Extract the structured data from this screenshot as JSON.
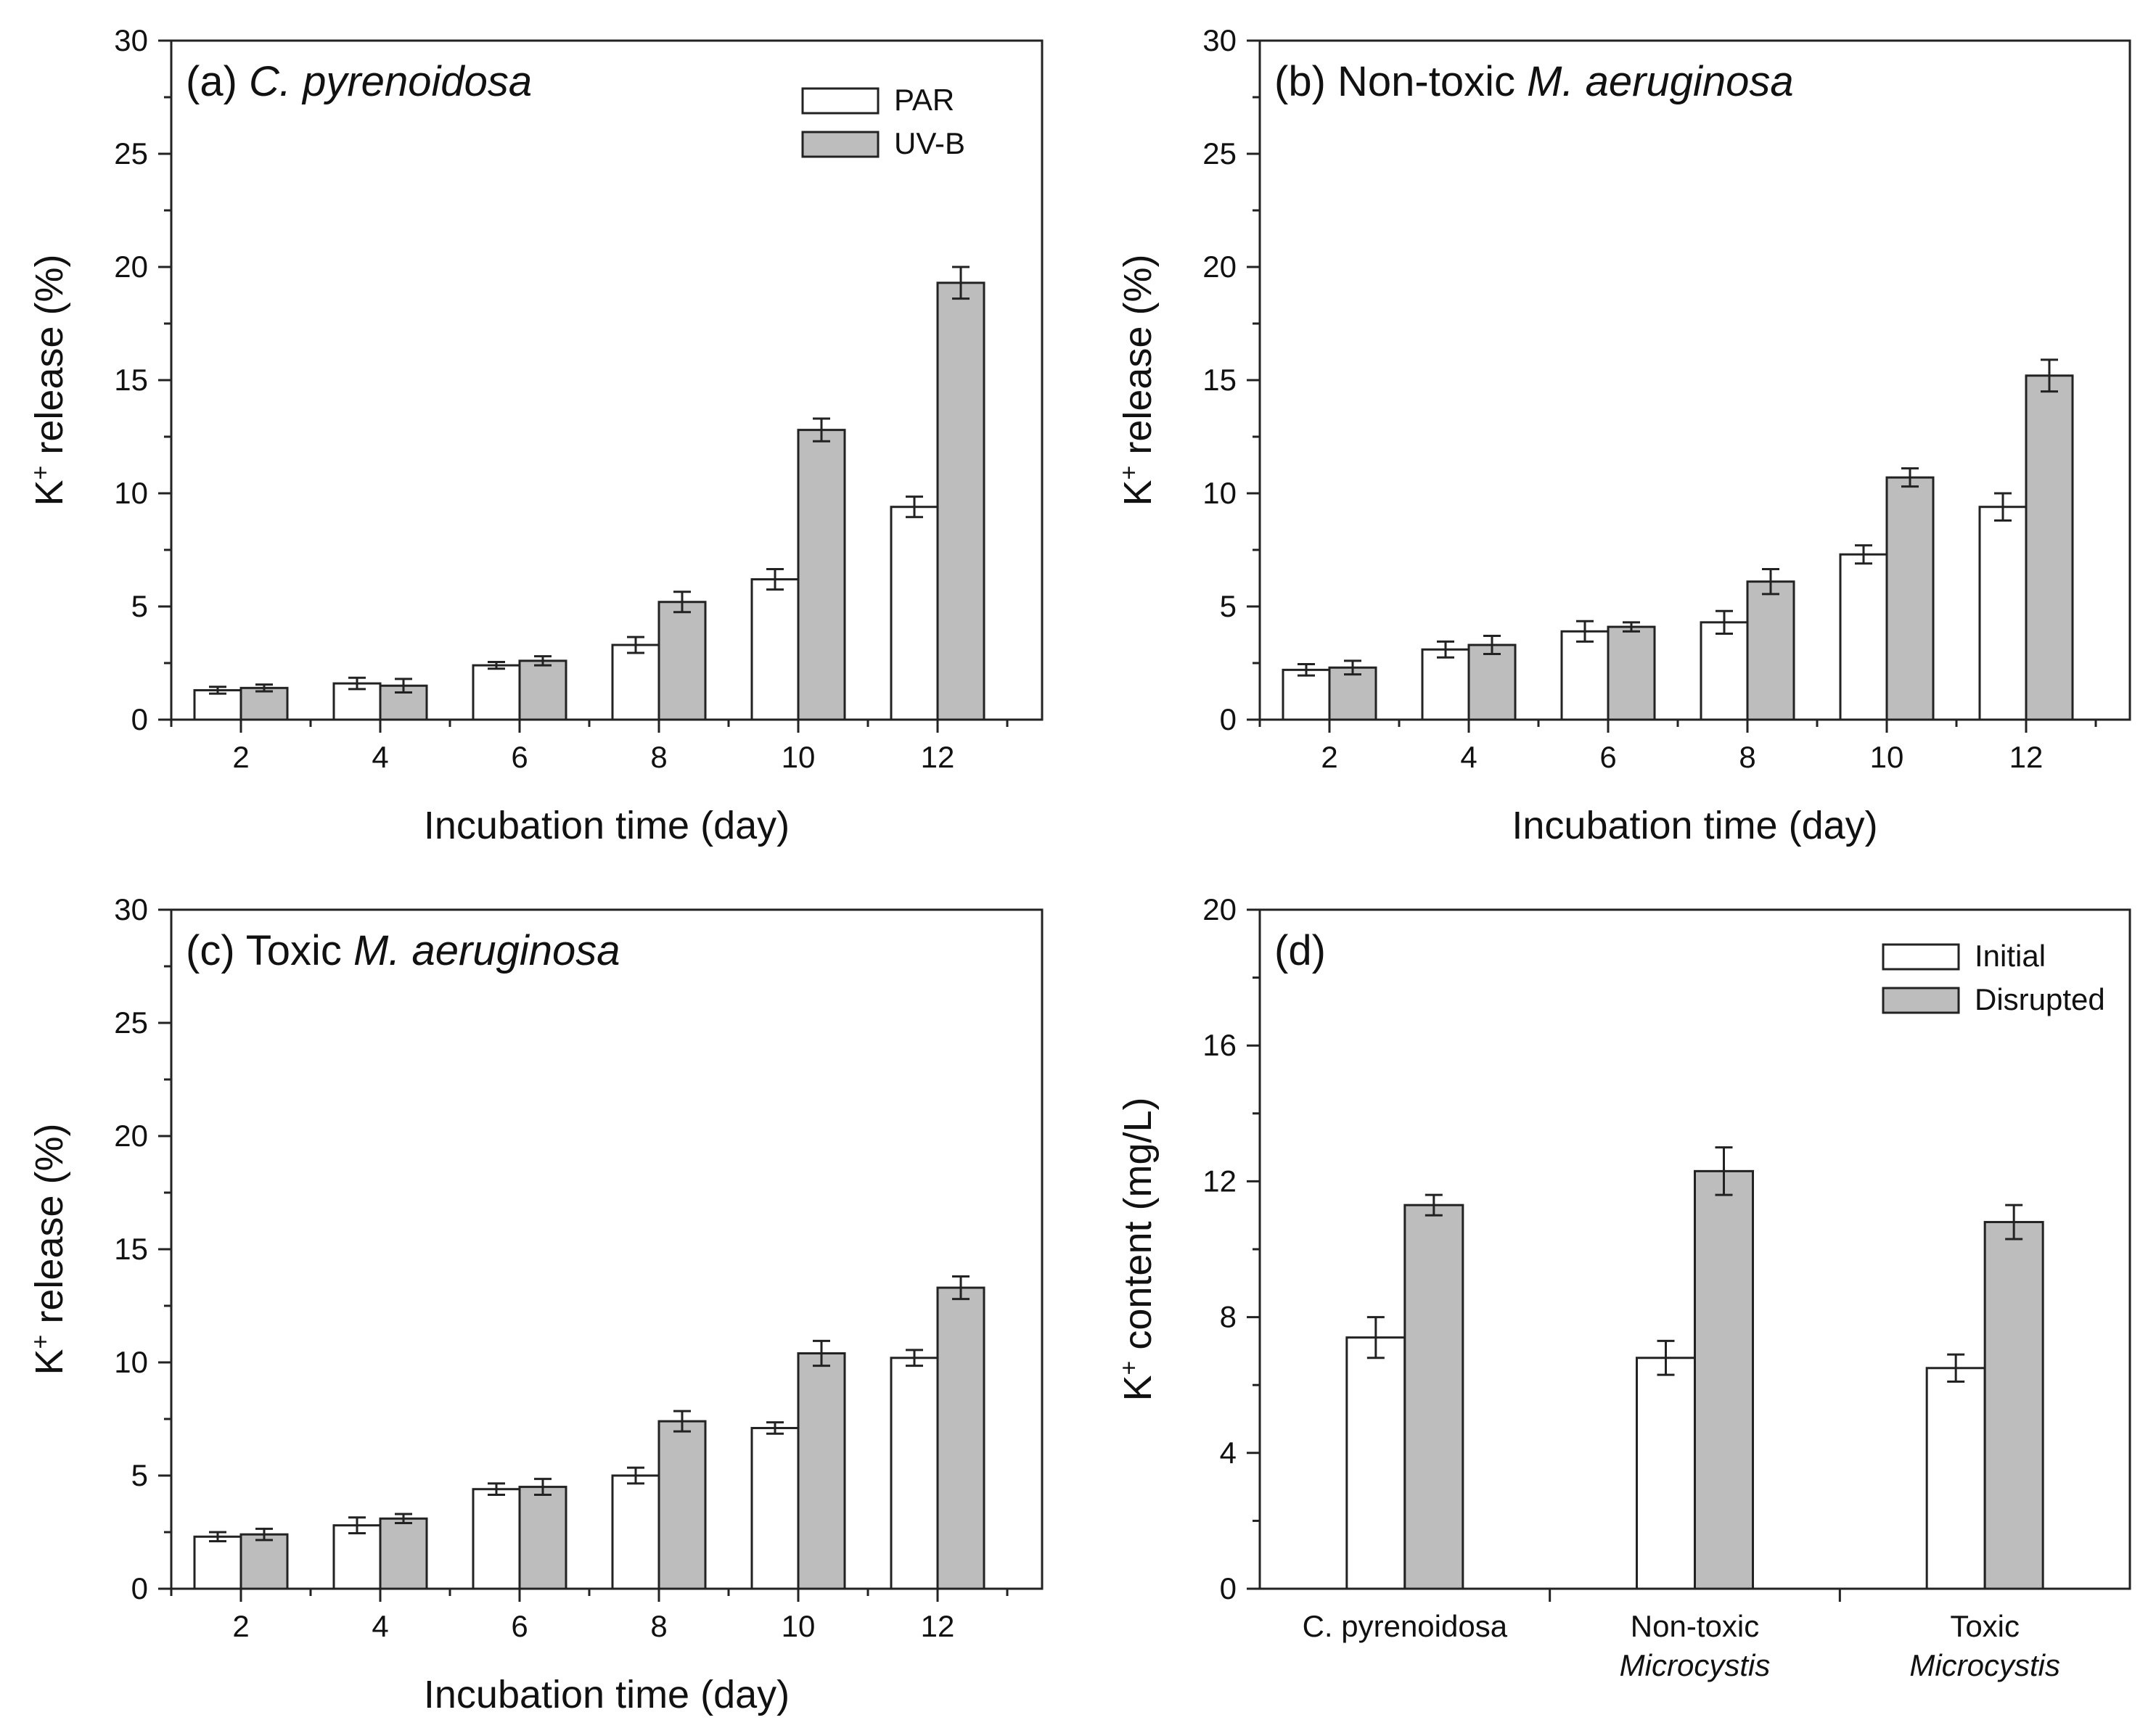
{
  "chart_data": [
    {
      "panel": "a",
      "type": "bar",
      "title_prefix": "(a) ",
      "title_italic": "C. pyrenoidosa",
      "title_suffix": "",
      "xlabel": "Incubation time (day)",
      "ylabel_main": "K",
      "ylabel_sup": "+",
      "ylabel_rest": "  release (%)",
      "ylim": [
        0,
        30
      ],
      "yticks": [
        "0",
        "5",
        "10",
        "15",
        "20",
        "25",
        "30"
      ],
      "categories": [
        "2",
        "4",
        "6",
        "8",
        "10",
        "12"
      ],
      "legend_position": "top-right",
      "series": [
        {
          "name": "PAR",
          "style": "white",
          "values": [
            1.3,
            1.6,
            2.4,
            3.3,
            6.2,
            9.4
          ],
          "errors": [
            0.15,
            0.25,
            0.15,
            0.35,
            0.45,
            0.45
          ]
        },
        {
          "name": "UV-B",
          "style": "grey",
          "values": [
            1.4,
            1.5,
            2.6,
            5.2,
            12.8,
            19.3
          ],
          "errors": [
            0.15,
            0.3,
            0.2,
            0.45,
            0.5,
            0.7
          ]
        }
      ]
    },
    {
      "panel": "b",
      "type": "bar",
      "title_prefix": "(b) Non-toxic ",
      "title_italic": "M. aeruginosa",
      "title_suffix": "",
      "xlabel": "Incubation time (day)",
      "ylabel_main": "K",
      "ylabel_sup": "+",
      "ylabel_rest": "  release (%)",
      "ylim": [
        0,
        30
      ],
      "yticks": [
        "0",
        "5",
        "10",
        "15",
        "20",
        "25",
        "30"
      ],
      "categories": [
        "2",
        "4",
        "6",
        "8",
        "10",
        "12"
      ],
      "legend_position": "none",
      "series": [
        {
          "name": "PAR",
          "style": "white",
          "values": [
            2.2,
            3.1,
            3.9,
            4.3,
            7.3,
            9.4
          ],
          "errors": [
            0.25,
            0.35,
            0.45,
            0.5,
            0.4,
            0.6
          ]
        },
        {
          "name": "UV-B",
          "style": "grey",
          "values": [
            2.3,
            3.3,
            4.1,
            6.1,
            10.7,
            15.2
          ],
          "errors": [
            0.3,
            0.4,
            0.2,
            0.55,
            0.4,
            0.7
          ]
        }
      ]
    },
    {
      "panel": "c",
      "type": "bar",
      "title_prefix": "(c) Toxic ",
      "title_italic": "M. aeruginosa",
      "title_suffix": "",
      "xlabel": "Incubation time (day)",
      "ylabel_main": "K",
      "ylabel_sup": "+",
      "ylabel_rest": "  release (%)",
      "ylim": [
        0,
        30
      ],
      "yticks": [
        "0",
        "5",
        "10",
        "15",
        "20",
        "25",
        "30"
      ],
      "categories": [
        "2",
        "4",
        "6",
        "8",
        "10",
        "12"
      ],
      "legend_position": "none",
      "series": [
        {
          "name": "PAR",
          "style": "white",
          "values": [
            2.3,
            2.8,
            4.4,
            5.0,
            7.1,
            10.2
          ],
          "errors": [
            0.2,
            0.35,
            0.25,
            0.35,
            0.25,
            0.35
          ]
        },
        {
          "name": "UV-B",
          "style": "grey",
          "values": [
            2.4,
            3.1,
            4.5,
            7.4,
            10.4,
            13.3
          ],
          "errors": [
            0.25,
            0.2,
            0.35,
            0.45,
            0.55,
            0.5
          ]
        }
      ]
    },
    {
      "panel": "d",
      "type": "bar",
      "title_prefix": "(d)",
      "title_italic": "",
      "title_suffix": "",
      "xlabel": "",
      "ylabel_main": "K",
      "ylabel_sup": "+",
      "ylabel_rest": " content (mg/L)",
      "ylim": [
        0,
        20
      ],
      "yticks": [
        "0",
        "4",
        "8",
        "12",
        "16",
        "20"
      ],
      "categories": [
        {
          "line1": "C. pyrenoidosa",
          "line2": ""
        },
        {
          "line1": "Non-toxic",
          "line2": "Microcystis"
        },
        {
          "line1": "Toxic",
          "line2": "Microcystis"
        }
      ],
      "legend_position": "top-right",
      "series": [
        {
          "name": "Initial",
          "style": "white",
          "values": [
            7.4,
            6.8,
            6.5
          ],
          "errors": [
            0.6,
            0.5,
            0.4
          ]
        },
        {
          "name": "Disrupted",
          "style": "grey",
          "values": [
            11.3,
            12.3,
            10.8
          ],
          "errors": [
            0.3,
            0.7,
            0.5
          ]
        }
      ]
    }
  ]
}
